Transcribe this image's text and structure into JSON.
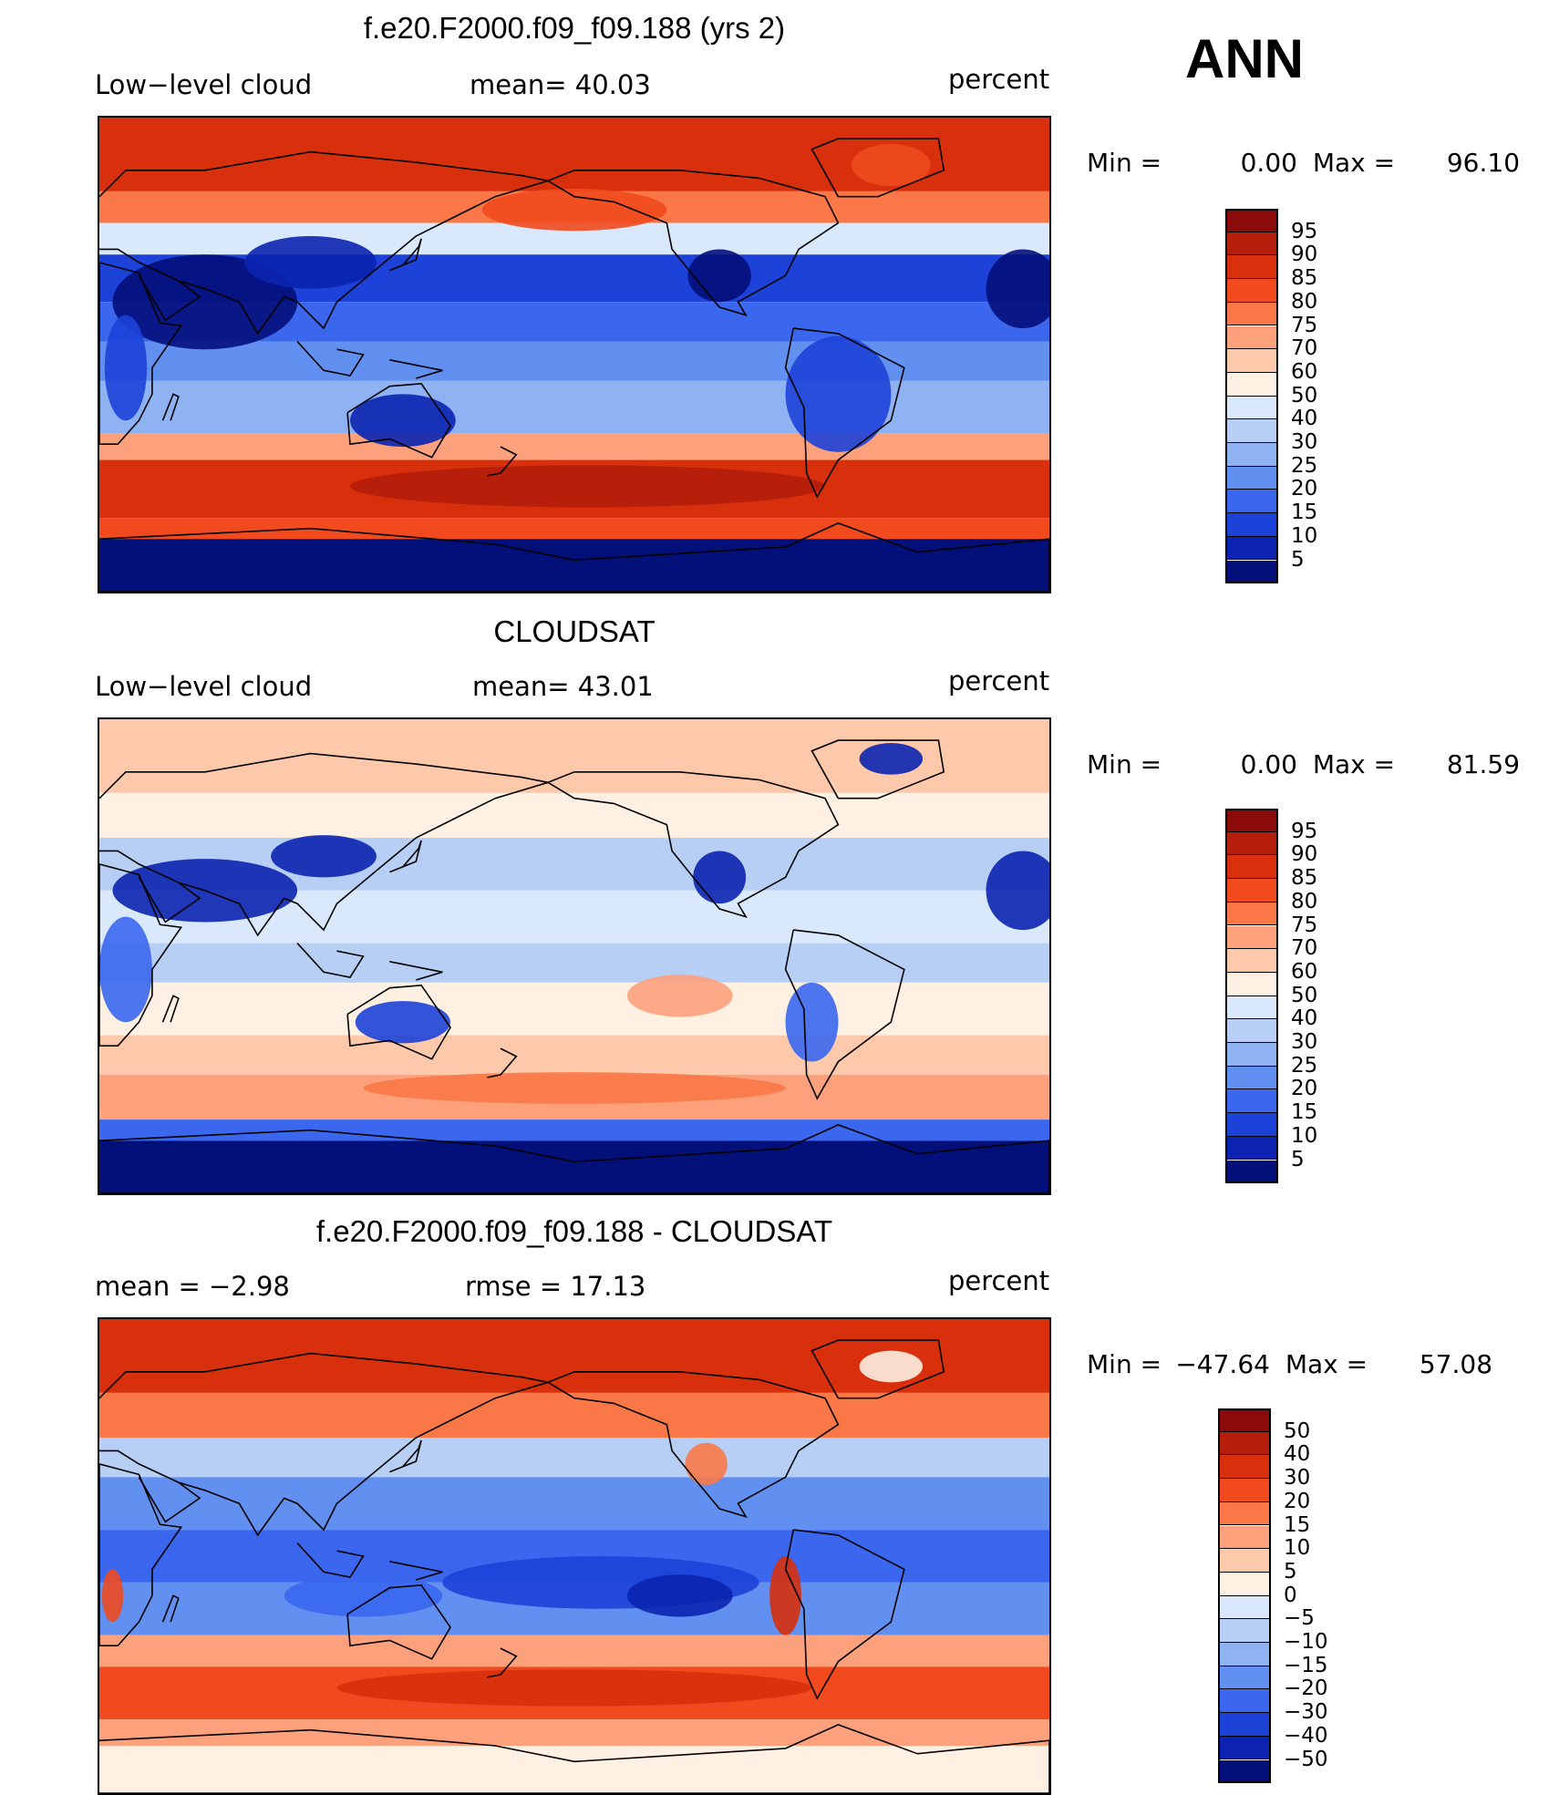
{
  "season": "ANN",
  "panels": [
    {
      "title": "f.e20.F2000.f09_f09.188 (yrs 2)",
      "left_label": "Low−level cloud",
      "mid_label": "mean=   40.03",
      "units": "percent",
      "min_label": "Min =",
      "min_value": "0.00",
      "max_label": "Max =",
      "max_value": "96.10",
      "colorbar_labels": [
        "95",
        "90",
        "85",
        "80",
        "75",
        "70",
        "60",
        "50",
        "40",
        "30",
        "25",
        "20",
        "15",
        "10",
        "5"
      ],
      "colorbar_colors": [
        "#8b0a0a",
        "#b41e0a",
        "#d8300c",
        "#f04a1e",
        "#fa7848",
        "#fda07c",
        "#fec8aa",
        "#fef0e2",
        "#d9e8fa",
        "#b7cff5",
        "#8fb2f2",
        "#6290f0",
        "#3a67ee",
        "#1d42d8",
        "#0b23b0",
        "#04107a"
      ],
      "map_kind": "model"
    },
    {
      "title": "CLOUDSAT",
      "left_label": "Low−level cloud",
      "mid_label": "mean=   43.01",
      "units": "percent",
      "min_label": "Min =",
      "min_value": "0.00",
      "max_label": "Max =",
      "max_value": "81.59",
      "colorbar_labels": [
        "95",
        "90",
        "85",
        "80",
        "75",
        "70",
        "60",
        "50",
        "40",
        "30",
        "25",
        "20",
        "15",
        "10",
        "5"
      ],
      "colorbar_colors": [
        "#8b0a0a",
        "#b41e0a",
        "#d8300c",
        "#f04a1e",
        "#fa7848",
        "#fda07c",
        "#fec8aa",
        "#fef0e2",
        "#d9e8fa",
        "#b7cff5",
        "#8fb2f2",
        "#6290f0",
        "#3a67ee",
        "#1d42d8",
        "#0b23b0",
        "#04107a"
      ],
      "map_kind": "obs"
    },
    {
      "title": "f.e20.F2000.f09_f09.188 - CLOUDSAT",
      "left_label": "mean =    −2.98",
      "mid_label": "rmse =    17.13",
      "units": "percent",
      "min_label": "Min = ",
      "min_value": "−47.64",
      "max_label": "Max =",
      "max_value": "57.08",
      "colorbar_labels": [
        "50",
        "40",
        "30",
        "20",
        "15",
        "10",
        "5",
        "0",
        "−5",
        "−10",
        "−15",
        "−20",
        "−30",
        "−40",
        "−50"
      ],
      "colorbar_colors": [
        "#8b0a0a",
        "#b41e0a",
        "#d8300c",
        "#f04a1e",
        "#fa7848",
        "#fda07c",
        "#fec8aa",
        "#fef0e2",
        "#d9e8fa",
        "#b7cff5",
        "#8fb2f2",
        "#6290f0",
        "#3a67ee",
        "#1d42d8",
        "#0b23b0",
        "#04107a"
      ],
      "map_kind": "diff"
    }
  ]
}
